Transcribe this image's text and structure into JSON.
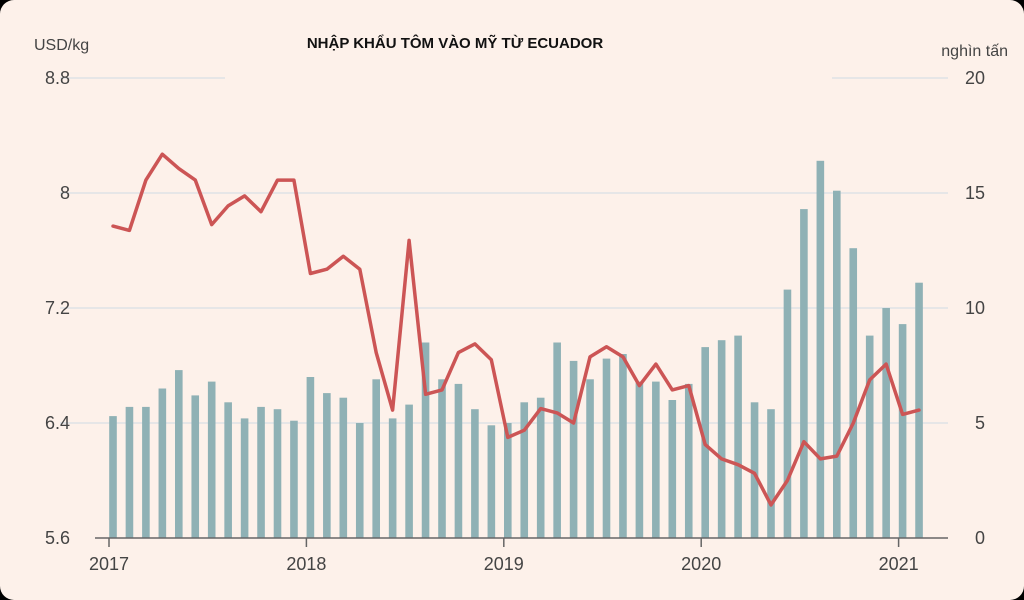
{
  "chart_data": {
    "type": "bar+line",
    "title": "NHẬP KHẨU TÔM VÀO MỸ TỪ ECUADOR",
    "left_axis": {
      "unit_label": "USD/kg",
      "range": [
        5.6,
        8.8
      ],
      "ticks": [
        "8.8",
        "8",
        "7.2",
        "6.4",
        "5.6"
      ],
      "tick_values": [
        8.8,
        8.0,
        7.2,
        6.4,
        5.6
      ]
    },
    "right_axis": {
      "unit_label": "nghìn tấn",
      "range": [
        0,
        20
      ],
      "ticks": [
        "20",
        "15",
        "10",
        "5",
        "0"
      ],
      "tick_values": [
        20,
        15,
        10,
        5,
        0
      ]
    },
    "x_axis": {
      "ticks": [
        "2017",
        "2018",
        "2019",
        "2020",
        "2021"
      ],
      "tick_index": [
        0,
        12,
        24,
        36,
        48
      ]
    },
    "grid": true,
    "series": [
      {
        "kind": "bar",
        "axis": "right",
        "color": "#8fb1b5",
        "values": [
          5.3,
          5.7,
          5.7,
          6.5,
          7.3,
          6.2,
          6.8,
          5.9,
          5.2,
          5.7,
          5.6,
          5.1,
          7.0,
          6.3,
          6.1,
          5.0,
          6.9,
          5.2,
          5.8,
          8.5,
          6.9,
          6.7,
          5.6,
          4.9,
          5.0,
          5.9,
          6.1,
          8.5,
          7.7,
          6.9,
          7.8,
          8.0,
          6.8,
          6.8,
          6.0,
          6.7,
          8.3,
          8.6,
          8.8,
          5.9,
          5.6,
          10.8,
          14.3,
          16.4,
          15.1,
          12.6,
          8.8,
          10.0,
          9.3,
          11.1
        ]
      },
      {
        "kind": "line",
        "axis": "left",
        "color": "#cc5555",
        "values": [
          7.77,
          7.74,
          8.09,
          8.27,
          8.17,
          8.09,
          7.78,
          7.91,
          7.98,
          7.87,
          8.09,
          8.09,
          7.44,
          7.47,
          7.56,
          7.47,
          6.89,
          6.49,
          7.67,
          6.6,
          6.63,
          6.89,
          6.95,
          6.84,
          6.3,
          6.35,
          6.5,
          6.47,
          6.4,
          6.86,
          6.93,
          6.86,
          6.66,
          6.81,
          6.63,
          6.66,
          6.25,
          6.15,
          6.11,
          6.05,
          5.83,
          6.0,
          6.27,
          6.15,
          6.17,
          6.4,
          6.7,
          6.81,
          6.46,
          6.49
        ]
      }
    ]
  },
  "style": {
    "background": "#fdf1ea",
    "grid_color": "#dfe2e6",
    "text_color": "#444444",
    "title_color": "#111111"
  }
}
